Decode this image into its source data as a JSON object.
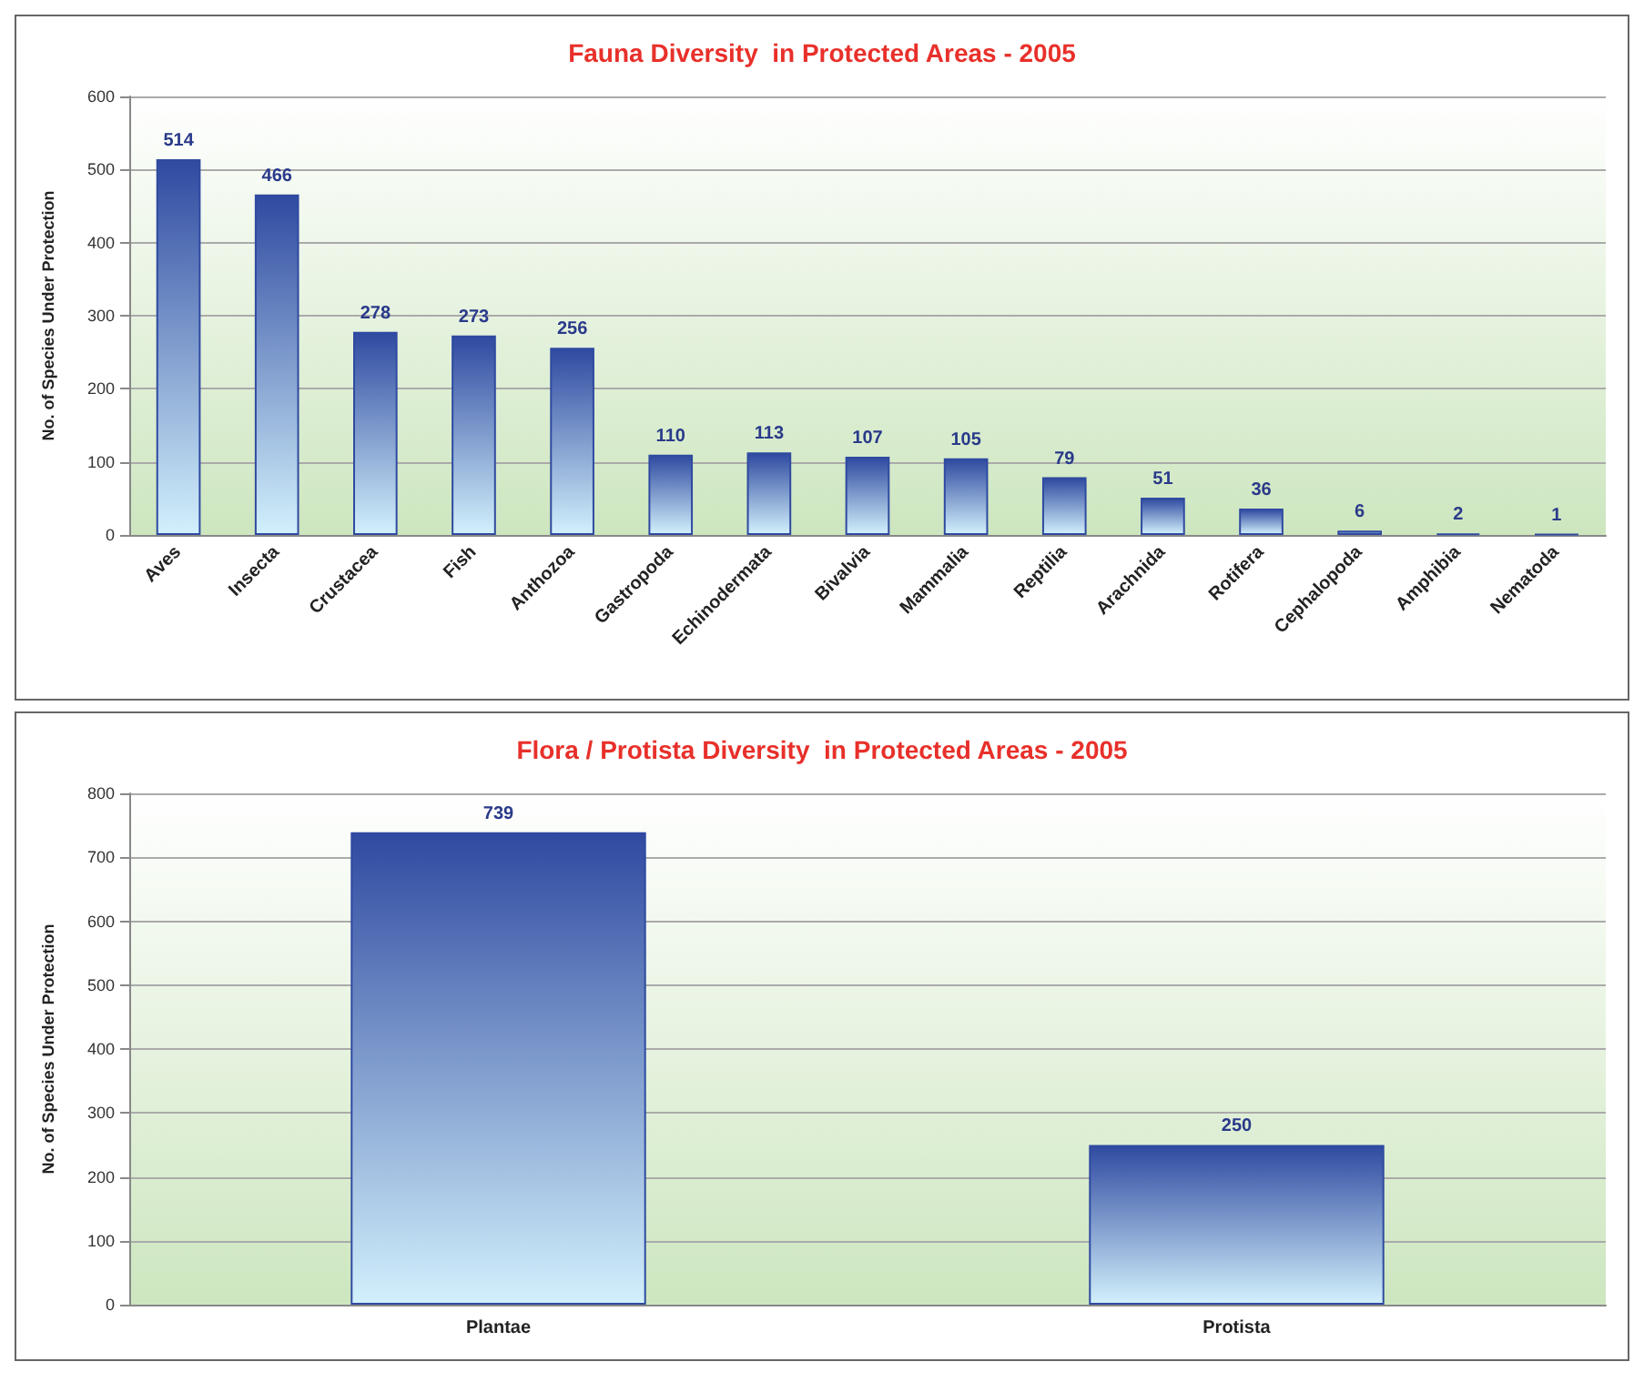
{
  "chart_data": [
    {
      "type": "bar",
      "title": "Fauna Diversity  in Protected Areas - 2005",
      "ylabel": "No. of Species Under Protection",
      "categories": [
        "Aves",
        "Insecta",
        "Crustacea",
        "Fish",
        "Anthozoa",
        "Gastropoda",
        "Echinodermata",
        "Bivalvia",
        "Mammalia",
        "Reptilia",
        "Arachnida",
        "Rotifera",
        "Cephalopoda",
        "Amphibia",
        "Nematoda"
      ],
      "values": [
        514,
        466,
        278,
        273,
        256,
        110,
        113,
        107,
        105,
        79,
        51,
        36,
        6,
        2,
        1
      ],
      "color": "#2f4aa0",
      "ylim": [
        0,
        600
      ],
      "yticks": [
        0,
        100,
        200,
        300,
        400,
        500,
        600
      ],
      "grid": "y",
      "data_labels": true
    },
    {
      "type": "bar",
      "title": "Flora / Protista Diversity  in Protected Areas - 2005",
      "ylabel": "No. of Species Under Protection",
      "categories": [
        "Plantae",
        "Protista"
      ],
      "values": [
        739,
        250
      ],
      "color": "#2f4aa0",
      "ylim": [
        0,
        800
      ],
      "yticks": [
        0,
        100,
        200,
        300,
        400,
        500,
        600,
        700,
        800
      ],
      "grid": "y",
      "data_labels": true
    }
  ]
}
